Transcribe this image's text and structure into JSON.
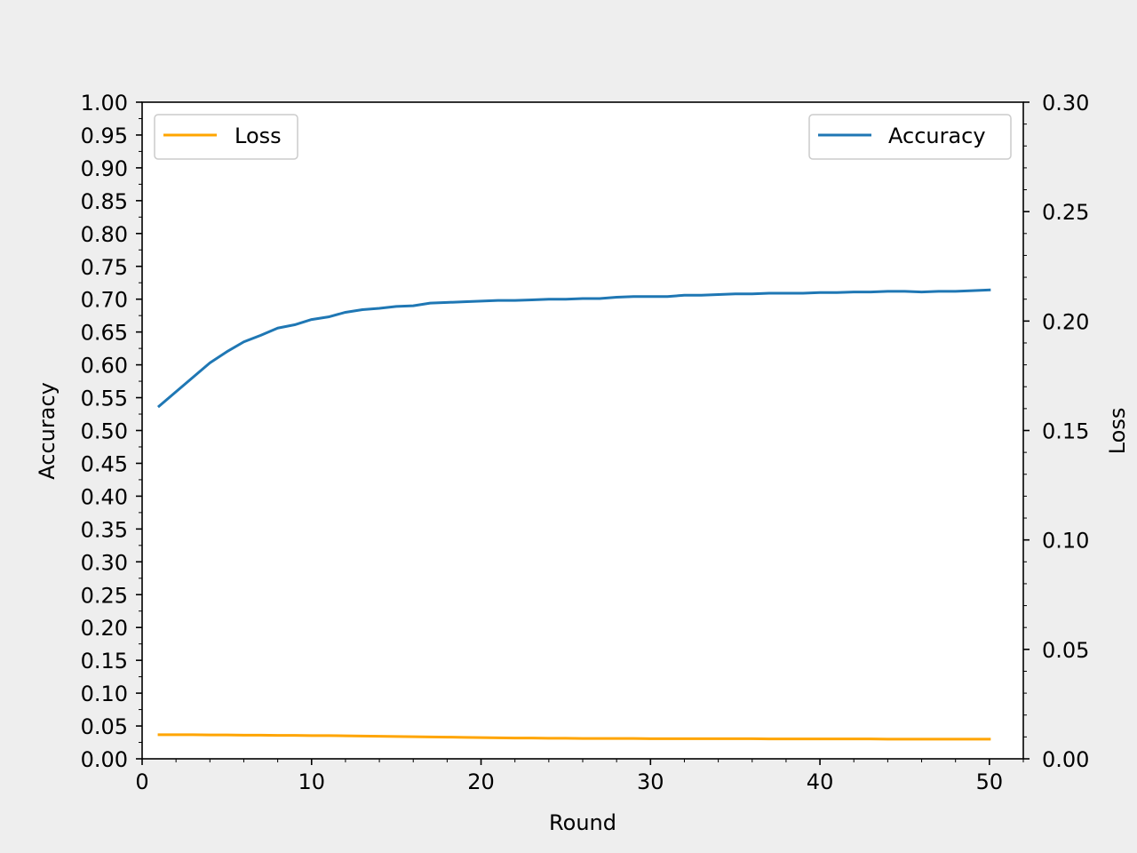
{
  "chart_data": {
    "type": "line",
    "xlabel": "Round",
    "ylabel_left": "Accuracy",
    "ylabel_right": "Loss",
    "xlim": [
      0,
      52
    ],
    "ylim_left": [
      0,
      1.0
    ],
    "ylim_right": [
      0,
      0.3
    ],
    "x_ticks": [
      0,
      10,
      20,
      30,
      40,
      50
    ],
    "y_left_ticks": [
      "0.00",
      "0.05",
      "0.10",
      "0.15",
      "0.20",
      "0.25",
      "0.30",
      "0.35",
      "0.40",
      "0.45",
      "0.50",
      "0.55",
      "0.60",
      "0.65",
      "0.70",
      "0.75",
      "0.80",
      "0.85",
      "0.90",
      "0.95",
      "1.00"
    ],
    "y_right_ticks": [
      "0.00",
      "0.05",
      "0.10",
      "0.15",
      "0.20",
      "0.25",
      "0.30"
    ],
    "grid": false,
    "legends": [
      {
        "placement": "upper-left",
        "entries": [
          {
            "label": "Loss",
            "color": "#ffa500"
          }
        ]
      },
      {
        "placement": "upper-right",
        "entries": [
          {
            "label": "Accuracy",
            "color": "#1f77b4"
          }
        ]
      }
    ],
    "x": [
      1,
      2,
      3,
      4,
      5,
      6,
      7,
      8,
      9,
      10,
      11,
      12,
      13,
      14,
      15,
      16,
      17,
      18,
      19,
      20,
      21,
      22,
      23,
      24,
      25,
      26,
      27,
      28,
      29,
      30,
      31,
      32,
      33,
      34,
      35,
      36,
      37,
      38,
      39,
      40,
      41,
      42,
      43,
      44,
      45,
      46,
      47,
      48,
      49,
      50
    ],
    "series": [
      {
        "name": "Accuracy",
        "axis": "left",
        "color": "#1f77b4",
        "values": [
          0.537,
          0.559,
          0.581,
          0.603,
          0.62,
          0.635,
          0.645,
          0.656,
          0.661,
          0.669,
          0.673,
          0.68,
          0.684,
          0.686,
          0.689,
          0.69,
          0.694,
          0.695,
          0.696,
          0.697,
          0.698,
          0.698,
          0.699,
          0.7,
          0.7,
          0.701,
          0.701,
          0.703,
          0.704,
          0.704,
          0.704,
          0.706,
          0.706,
          0.707,
          0.708,
          0.708,
          0.709,
          0.709,
          0.709,
          0.71,
          0.71,
          0.711,
          0.711,
          0.712,
          0.712,
          0.711,
          0.712,
          0.712,
          0.713,
          0.714
        ]
      },
      {
        "name": "Loss",
        "axis": "right",
        "color": "#ffa500",
        "values": [
          0.011,
          0.011,
          0.011,
          0.0109,
          0.0109,
          0.0108,
          0.0108,
          0.0107,
          0.0107,
          0.0106,
          0.0106,
          0.0105,
          0.0104,
          0.0103,
          0.0102,
          0.0101,
          0.01,
          0.0099,
          0.0098,
          0.0097,
          0.0096,
          0.0095,
          0.0095,
          0.0094,
          0.0094,
          0.0093,
          0.0093,
          0.0093,
          0.0093,
          0.0092,
          0.0092,
          0.0092,
          0.0092,
          0.0092,
          0.0092,
          0.0092,
          0.0091,
          0.0091,
          0.0091,
          0.0091,
          0.0091,
          0.0091,
          0.0091,
          0.009,
          0.009,
          0.009,
          0.009,
          0.009,
          0.009,
          0.009
        ]
      }
    ]
  }
}
